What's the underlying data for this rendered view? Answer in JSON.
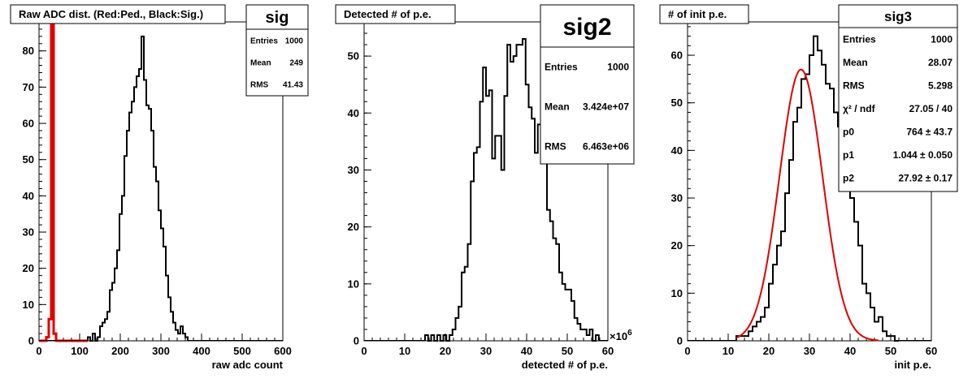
{
  "chart_data": [
    {
      "type": "histogram",
      "title": "Raw ADC dist. (Red:Ped., Black:Sig.)",
      "xlabel": "raw adc count",
      "ylabel": "",
      "xlim": [
        0,
        600
      ],
      "ylim": [
        0,
        88
      ],
      "xticks": [
        0,
        100,
        200,
        300,
        400,
        500,
        600
      ],
      "yticks": [
        0,
        10,
        20,
        30,
        40,
        50,
        60,
        70,
        80
      ],
      "xtick_labels": [
        "0",
        "100",
        "200",
        "300",
        "400",
        "500",
        "600"
      ],
      "ytick_labels": [
        "0",
        "10",
        "20",
        "30",
        "40",
        "50",
        "60",
        "70",
        "80"
      ],
      "stats": {
        "name": "sig",
        "rows": [
          {
            "label": "Entries",
            "value": "1000"
          },
          {
            "label": "Mean",
            "value": "249"
          },
          {
            "label": "RMS",
            "value": "41.43"
          }
        ]
      },
      "series": [
        {
          "name": "",
          "color": "#000000",
          "bin_width": 6,
          "edges_start": 120,
          "counts": [
            1,
            0,
            2,
            0,
            1,
            4,
            5,
            6,
            8,
            14,
            16,
            20,
            25,
            35,
            40,
            51,
            58,
            63,
            66,
            70,
            73,
            75,
            84,
            72,
            65,
            64,
            58,
            48,
            44,
            36,
            31,
            26,
            18,
            12,
            8,
            5,
            3,
            2,
            4,
            2,
            1
          ]
        },
        {
          "name": "",
          "color": "#e00000",
          "bin_width": 6,
          "edges_start": 0,
          "counts": [
            0,
            0,
            0,
            1,
            6,
            88,
            2,
            0,
            0,
            0,
            0,
            0,
            0,
            0,
            0,
            0,
            0,
            0,
            0,
            0
          ]
        }
      ]
    },
    {
      "type": "histogram",
      "title": "Detected # of p.e.",
      "xlabel": "detected # of p.e.",
      "ylabel": "",
      "exponent_label": "×10",
      "exponent_power": "6",
      "xlim": [
        0,
        60
      ],
      "ylim": [
        0,
        56
      ],
      "xticks": [
        0,
        10,
        20,
        30,
        40,
        50,
        60
      ],
      "yticks": [
        0,
        10,
        20,
        30,
        40,
        50
      ],
      "xtick_labels": [
        "0",
        "10",
        "20",
        "30",
        "40",
        "50",
        "60"
      ],
      "ytick_labels": [
        "0",
        "10",
        "20",
        "30",
        "40",
        "50"
      ],
      "stats": {
        "name": "sig2",
        "rows": [
          {
            "label": "Entries",
            "value": "1000"
          },
          {
            "label": "Mean",
            "value": "3.424e+07"
          },
          {
            "label": "RMS",
            "value": "6.463e+06"
          }
        ]
      },
      "series": [
        {
          "name": "",
          "color": "#000000",
          "bin_width": 0.75,
          "edges_start": 15,
          "counts": [
            1,
            0,
            1,
            0,
            1,
            0,
            1,
            0,
            1,
            2,
            4,
            6,
            12,
            13,
            17,
            28,
            33,
            34,
            42,
            48,
            43,
            44,
            32,
            36,
            36,
            30,
            43,
            52,
            49,
            50,
            52,
            52,
            53,
            45,
            41,
            39,
            33,
            38,
            39,
            32,
            23,
            21,
            18,
            17,
            12,
            10,
            9,
            9,
            7,
            4,
            3,
            2,
            2,
            1,
            2,
            0,
            1
          ]
        }
      ]
    },
    {
      "type": "histogram",
      "title": "# of init p.e.",
      "xlabel": "init p.e.",
      "ylabel": "",
      "xlim": [
        0,
        60
      ],
      "ylim": [
        0,
        67
      ],
      "xticks": [
        0,
        10,
        20,
        30,
        40,
        50,
        60
      ],
      "yticks": [
        0,
        10,
        20,
        30,
        40,
        50,
        60
      ],
      "xtick_labels": [
        "0",
        "10",
        "20",
        "30",
        "40",
        "50",
        "60"
      ],
      "ytick_labels": [
        "0",
        "10",
        "20",
        "30",
        "40",
        "50",
        "60"
      ],
      "stats": {
        "name": "sig3",
        "rows": [
          {
            "label": "Entries",
            "value": "1000"
          },
          {
            "label": "Mean",
            "value": "28.07"
          },
          {
            "label": "RMS",
            "value": "5.298"
          },
          {
            "label": "χ² / ndf",
            "value": "27.05 / 40"
          },
          {
            "label": "p0",
            "value": "764 ± 43.7"
          },
          {
            "label": "p1",
            "value": "1.044 ± 0.050"
          },
          {
            "label": "p2",
            "value": "27.92 ± 0.17"
          }
        ]
      },
      "fit": {
        "function": "gaus",
        "color": "#e00000",
        "p0": 764,
        "p1": 1.044,
        "p2": 27.92,
        "sigma": 5.3,
        "amplitude": 57
      },
      "series": [
        {
          "name": "",
          "color": "#000000",
          "bin_width": 1,
          "edges_start": 12,
          "counts": [
            1,
            1,
            1,
            2,
            3,
            4,
            5,
            7,
            12,
            16,
            20,
            23,
            31,
            38,
            46,
            49,
            55,
            56,
            60,
            64,
            61,
            58,
            54,
            53,
            48,
            45,
            43,
            36,
            30,
            25,
            20,
            12,
            10,
            7,
            4,
            5,
            2,
            1,
            1,
            0
          ]
        }
      ]
    }
  ]
}
